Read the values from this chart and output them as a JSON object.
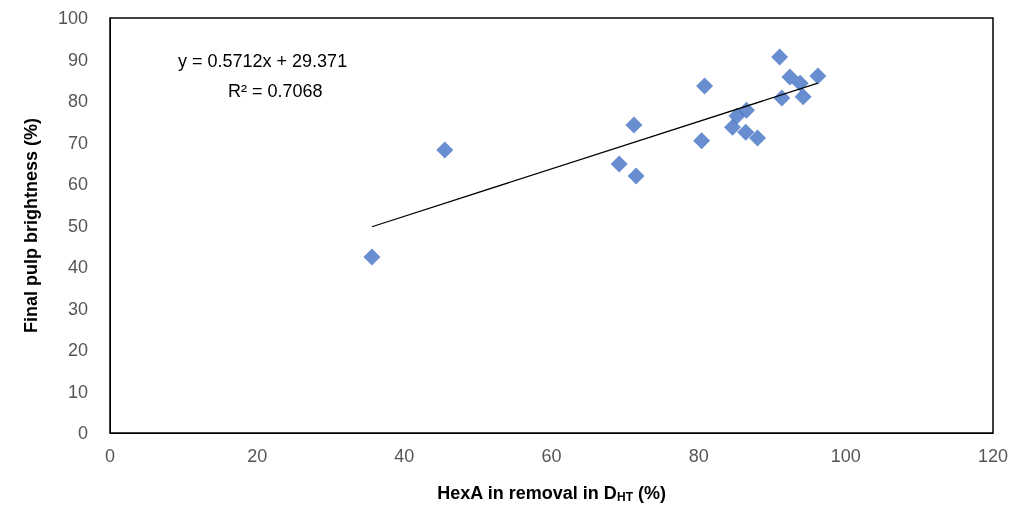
{
  "chart_data": {
    "type": "scatter",
    "xlabel": "HexA in removal in D$_{HT}$ (%)",
    "ylabel": "Final pulp brightness (%)",
    "xlim": [
      0,
      120
    ],
    "xticks": [
      0,
      20,
      40,
      60,
      80,
      100,
      120
    ],
    "ylim": [
      0,
      100
    ],
    "yticks": [
      0,
      10,
      20,
      30,
      40,
      50,
      60,
      70,
      80,
      90,
      100
    ],
    "grid": false,
    "marker": "diamond",
    "annotations": [
      "y = 0.5712x + 29.371",
      "R² = 0.7068"
    ],
    "series": [
      {
        "color": "#4472c4",
        "x": [
          35.6,
          45.5,
          69.2,
          71.2,
          71.5,
          80.4,
          80.8,
          84.6,
          85.2,
          86.5,
          86.4,
          88.0,
          91.0,
          91.3,
          92.4,
          93.8,
          94.2,
          96.2
        ],
        "values": [
          42.4,
          68.2,
          64.8,
          74.2,
          61.9,
          70.4,
          83.6,
          73.7,
          76.4,
          77.8,
          72.5,
          71.1,
          90.6,
          80.7,
          85.8,
          84.3,
          81.0,
          86.0
        ]
      },
      {
        "type": "line",
        "color": "#000000",
        "marker": "none",
        "x": [
          35.6,
          96.2
        ],
        "values": [
          49.7,
          84.3
        ]
      }
    ]
  }
}
